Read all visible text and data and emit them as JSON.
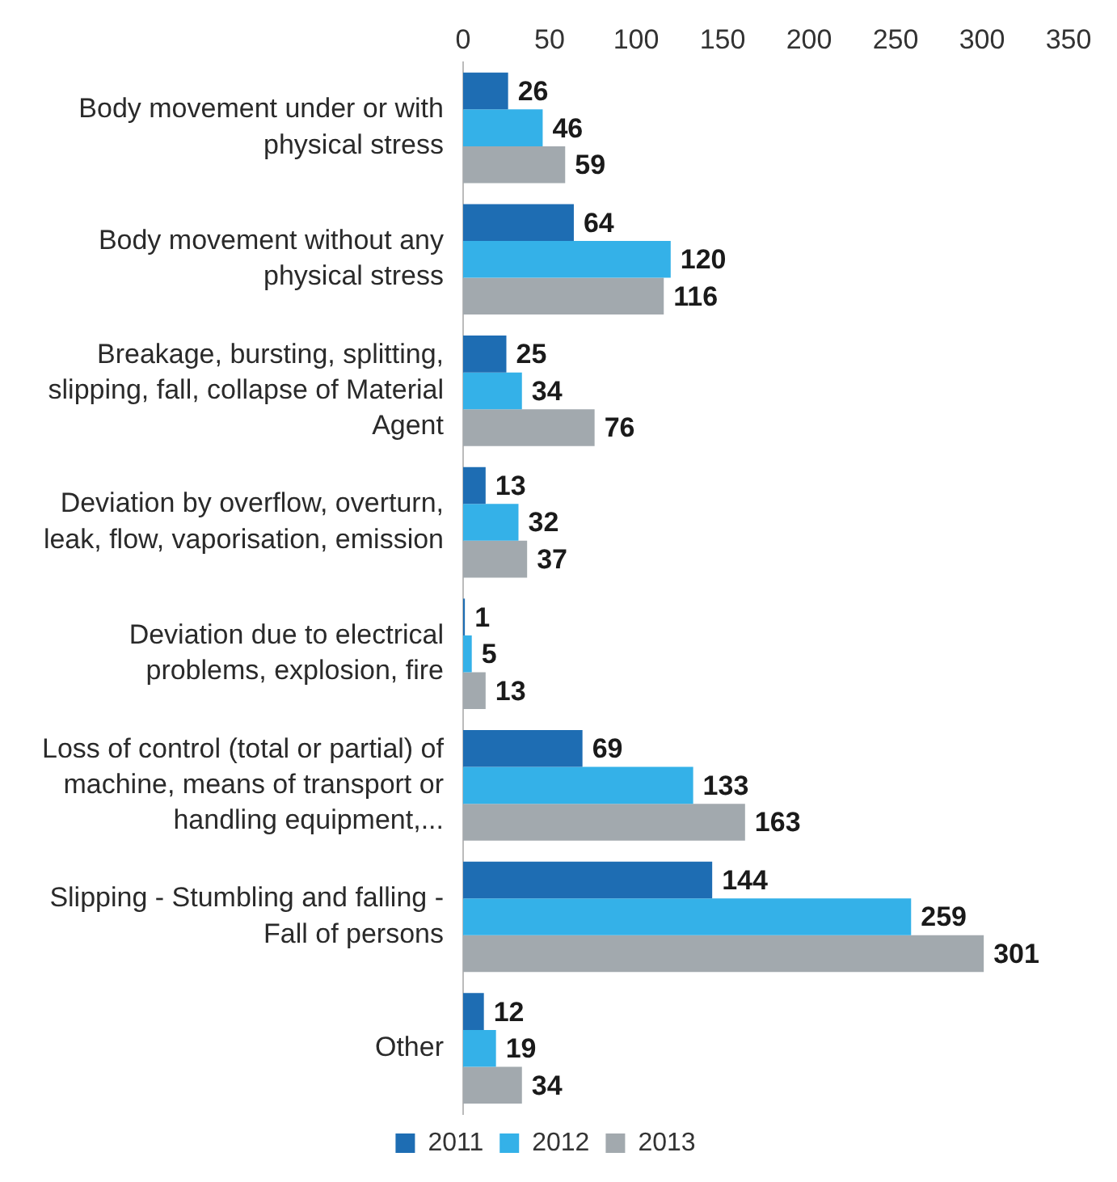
{
  "chart_data": {
    "type": "bar",
    "orientation": "horizontal",
    "categories": [
      "Body movement under or with physical stress",
      "Body movement without any physical stress",
      "Breakage, bursting, splitting, slipping, fall, collapse of Material Agent",
      "Deviation by overflow, overturn, leak, flow, vaporisation, emission",
      "Deviation due to electrical problems, explosion, fire",
      "Loss of control (total or partial) of machine, means of transport or handling equipment,...",
      "Slipping - Stumbling and falling - Fall of persons",
      "Other"
    ],
    "series": [
      {
        "name": "2011",
        "color": "#1e6db3",
        "values": [
          26,
          64,
          25,
          13,
          1,
          69,
          144,
          12
        ]
      },
      {
        "name": "2012",
        "color": "#34b1e8",
        "values": [
          46,
          120,
          34,
          32,
          5,
          133,
          259,
          19
        ]
      },
      {
        "name": "2013",
        "color": "#a2a9ae",
        "values": [
          59,
          116,
          76,
          37,
          13,
          163,
          301,
          34
        ]
      }
    ],
    "xlim": [
      0,
      350
    ],
    "xticks": [
      0,
      50,
      100,
      150,
      200,
      250,
      300,
      350
    ],
    "grid": false,
    "legend": "bottom",
    "data_labels": true
  }
}
